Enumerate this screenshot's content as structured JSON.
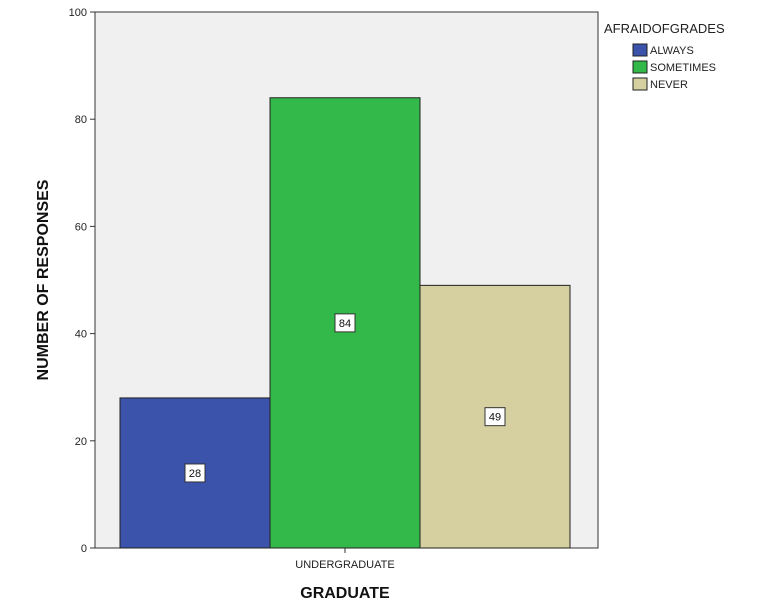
{
  "chart_data": {
    "type": "bar",
    "categories": [
      "UNDERGRADUATE"
    ],
    "xlabel": "GRADUATE",
    "ylabel": "NUMBER OF RESPONSES",
    "ylim": [
      0,
      100
    ],
    "yticks": [
      0,
      20,
      40,
      60,
      80,
      100
    ],
    "grid": false,
    "legend": {
      "title": "AFRAIDOFGRADES",
      "placement": "top-right"
    },
    "series": [
      {
        "name": "ALWAYS",
        "values": [
          28
        ],
        "color": "#3b53aa"
      },
      {
        "name": "SOMETIMES",
        "values": [
          84
        ],
        "color": "#32b94a"
      },
      {
        "name": "NEVER",
        "values": [
          49
        ],
        "color": "#d6d0a0"
      }
    ],
    "data_labels": [
      "28",
      "84",
      "49"
    ],
    "plot_background": "#f0f0f0"
  }
}
